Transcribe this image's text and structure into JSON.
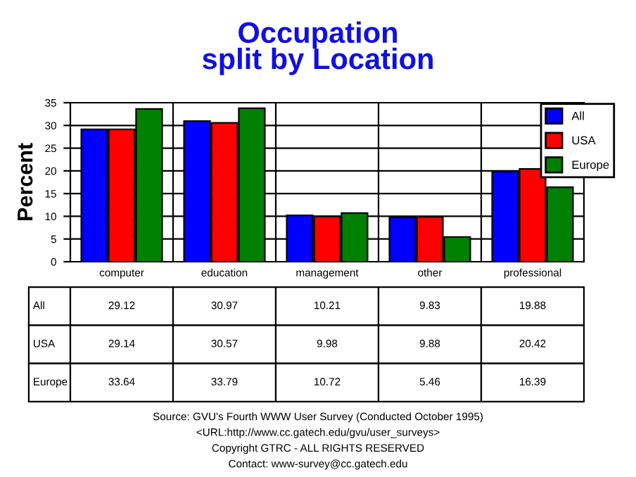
{
  "chart_data": {
    "type": "bar",
    "title": "Occupation\nsplit by Location",
    "ylabel": "Percent",
    "categories": [
      "computer",
      "education",
      "management",
      "other",
      "professional"
    ],
    "series": [
      {
        "name": "All",
        "color": "#0000ff",
        "values": [
          29.12,
          30.97,
          10.21,
          9.83,
          19.88
        ]
      },
      {
        "name": "USA",
        "color": "#ff0000",
        "values": [
          29.14,
          30.57,
          9.98,
          9.88,
          20.42
        ]
      },
      {
        "name": "Europe",
        "color": "#008000",
        "values": [
          33.64,
          33.79,
          10.72,
          5.46,
          16.39
        ]
      }
    ],
    "ylim": [
      0,
      35
    ],
    "yticks": [
      0,
      5,
      10,
      15,
      20,
      25,
      30,
      35
    ],
    "grid": true,
    "legend": "top right",
    "data_labels": true,
    "annotations": [
      "Source: GVU's Fourth WWW User Survey (Conducted October 1995)",
      "<URL:http://www.cc.gatech.edu/gvu/user_surveys>",
      "Copyright GTRC - ALL RIGHTS RESERVED",
      "Contact: www-survey@cc.gatech.edu"
    ]
  }
}
